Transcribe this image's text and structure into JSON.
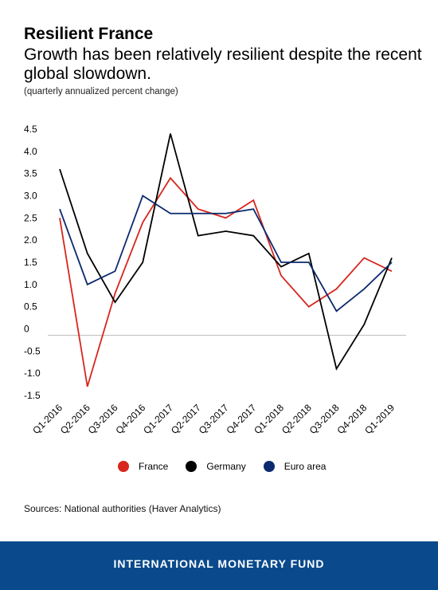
{
  "header": {
    "title": "Resilient France",
    "subtitle": "Growth has been relatively resilient despite the recent global slowdown.",
    "note": "(quarterly annualized percent change)"
  },
  "chart_data": {
    "type": "line",
    "categories": [
      "Q1-2016",
      "Q2-2016",
      "Q3-2016",
      "Q4-2016",
      "Q1-2017",
      "Q2-2017",
      "Q3-2017",
      "Q4-2017",
      "Q1-2018",
      "Q2-2018",
      "Q3-2018",
      "Q4-2018",
      "Q1-2019"
    ],
    "y_ticks": [
      "4.5",
      "4.0",
      "3.5",
      "3.0",
      "2.5",
      "2.0",
      "1.5",
      "1.0",
      "0.5",
      "0",
      "-0.5",
      "-1.0",
      "-1.5"
    ],
    "ylim": [
      -1.5,
      4.5
    ],
    "grid": false,
    "legend_position": "bottom",
    "series": [
      {
        "name": "France",
        "color": "#d7261e",
        "values": [
          2.5,
          -1.3,
          0.8,
          2.4,
          3.4,
          2.7,
          2.5,
          2.9,
          1.2,
          0.5,
          0.9,
          1.6,
          1.3
        ]
      },
      {
        "name": "Germany",
        "color": "#000000",
        "values": [
          3.6,
          1.7,
          0.6,
          1.5,
          4.4,
          2.1,
          2.2,
          2.1,
          1.4,
          1.7,
          -0.9,
          0.1,
          1.6
        ]
      },
      {
        "name": "Euro area",
        "color": "#0b2a6e",
        "values": [
          2.7,
          1.0,
          1.3,
          3.0,
          2.6,
          2.6,
          2.6,
          2.7,
          1.5,
          1.5,
          0.4,
          0.9,
          1.5
        ]
      }
    ]
  },
  "legend": {
    "items": [
      {
        "label": "France",
        "color": "#d7261e"
      },
      {
        "label": "Germany",
        "color": "#000000"
      },
      {
        "label": "Euro area",
        "color": "#0b2a6e"
      }
    ]
  },
  "source": "Sources: National authorities (Haver Analytics)",
  "footer": {
    "text": "INTERNATIONAL MONETARY FUND",
    "color": "#0a4a8c"
  }
}
